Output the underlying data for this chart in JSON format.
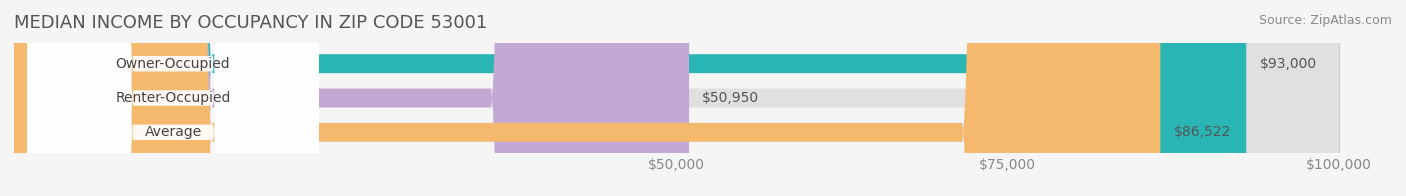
{
  "title": "MEDIAN INCOME BY OCCUPANCY IN ZIP CODE 53001",
  "source": "Source: ZipAtlas.com",
  "categories": [
    "Owner-Occupied",
    "Renter-Occupied",
    "Average"
  ],
  "values": [
    93000,
    50950,
    86522
  ],
  "labels": [
    "$93,000",
    "$50,950",
    "$86,522"
  ],
  "bar_colors": [
    "#2ab5b5",
    "#c4a8d4",
    "#f5b96e"
  ],
  "bar_edge_colors": [
    "#2ab5b5",
    "#c4a8d4",
    "#f5b96e"
  ],
  "background_color": "#f5f5f5",
  "bar_bg_color": "#e8e8e8",
  "xmin": 0,
  "xmax": 100000,
  "xticks": [
    50000,
    75000,
    100000
  ],
  "xtick_labels": [
    "$50,000",
    "$75,000",
    "$100,000"
  ],
  "bar_height": 0.55,
  "title_fontsize": 13,
  "source_fontsize": 9,
  "label_fontsize": 10,
  "tick_fontsize": 10,
  "cat_fontsize": 10
}
